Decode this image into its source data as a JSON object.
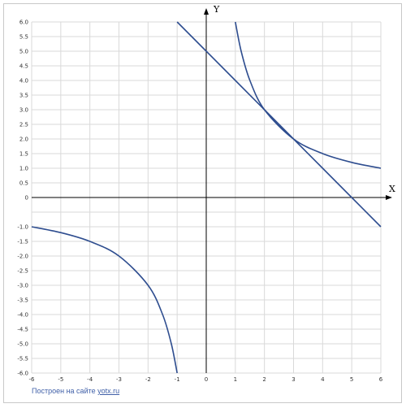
{
  "chart_data": {
    "type": "line",
    "xlabel": "X",
    "ylabel": "Y",
    "xlim": [
      -6,
      6
    ],
    "ylim": [
      -6,
      6
    ],
    "grid": true,
    "x_ticks": [
      "-6",
      "-5",
      "-4",
      "-3",
      "-2",
      "-1",
      "0",
      "1",
      "2",
      "3",
      "4",
      "5",
      "6"
    ],
    "y_ticks": [
      "6.0",
      "5.5",
      "5.0",
      "4.5",
      "4.0",
      "3.5",
      "3.0",
      "2.5",
      "2.0",
      "1.5",
      "1.0",
      "0.5",
      "0",
      "-1.0",
      "-1.5",
      "-2.0",
      "-2.5",
      "-3.0",
      "-3.5",
      "-4.0",
      "-4.5",
      "-5.0",
      "-5.5",
      "-6.0"
    ],
    "series": [
      {
        "points": [
          [
            -6,
            -1.0
          ],
          [
            -5,
            -1.2
          ],
          [
            -4,
            -1.5
          ],
          [
            -3,
            -2.0
          ],
          [
            -2,
            -3.0
          ],
          [
            -1.5,
            -4.0
          ],
          [
            -1.2,
            -5.0
          ],
          [
            -1,
            -6.0
          ]
        ],
        "color": "#2e4d8f"
      },
      {
        "points": [
          [
            1,
            6.0
          ],
          [
            1.2,
            5.0
          ],
          [
            1.5,
            4.0
          ],
          [
            2,
            3.0
          ],
          [
            3,
            2.0
          ],
          [
            4,
            1.5
          ],
          [
            5,
            1.2
          ],
          [
            6,
            1.0
          ]
        ],
        "color": "#2e4d8f"
      },
      {
        "points": [
          [
            -1,
            6.0
          ],
          [
            0,
            5.0
          ],
          [
            2,
            3.0
          ],
          [
            3,
            2.0
          ],
          [
            5,
            0
          ],
          [
            6,
            -1.0
          ]
        ],
        "color": "#2e4d8f"
      }
    ]
  },
  "credit": {
    "prefix": "Построен на сайте ",
    "link": "yotx.ru"
  }
}
